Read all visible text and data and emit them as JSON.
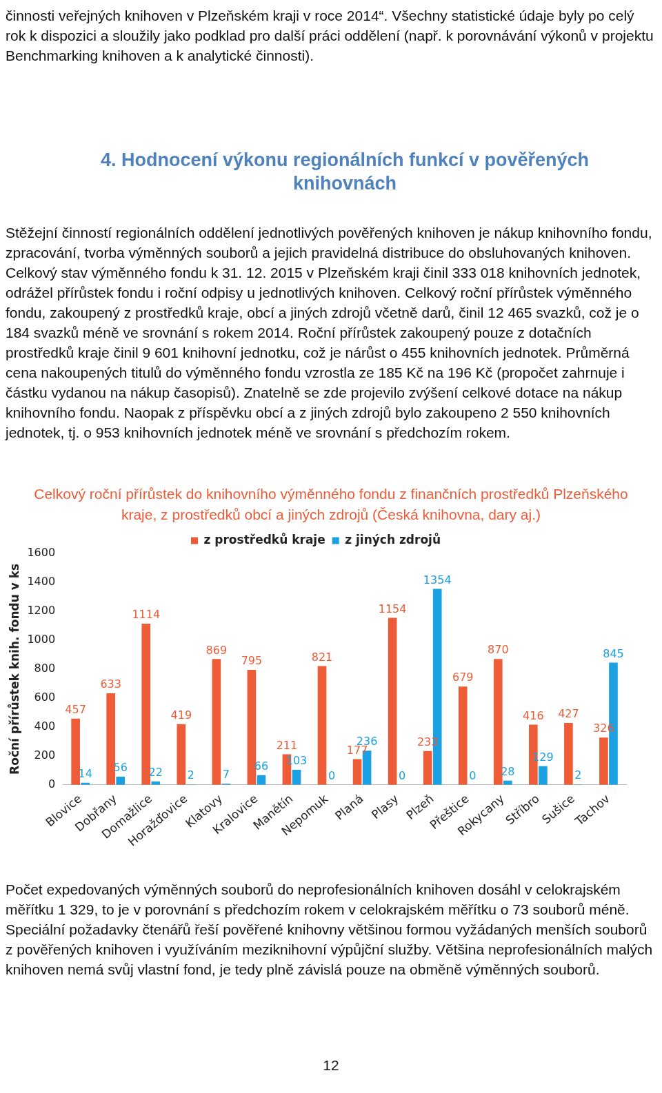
{
  "chart_data": {
    "type": "bar",
    "title": "Celkový roční přírůstek do knihovního výměnného fondu z finančních prostředků Plzeňského kraje, z prostředků obcí a jiných zdrojů (Česká knihovna, dary aj.)",
    "ylabel": "Roční přírůstek knih. fondu v ks",
    "categories": [
      "Blovice",
      "Dobřany",
      "Domažlice",
      "Horažďovice",
      "Klatovy",
      "Kralovice",
      "Manětín",
      "Nepomuk",
      "Planá",
      "Plasy",
      "Plzeň",
      "Přeštice",
      "Rokycany",
      "Stříbro",
      "Sušice",
      "Tachov"
    ],
    "series": [
      {
        "name": "z prostředků kraje",
        "color": "#ed5b37",
        "values": [
          457,
          633,
          1114,
          419,
          869,
          795,
          211,
          821,
          177,
          1154,
          233,
          679,
          870,
          416,
          427,
          326
        ]
      },
      {
        "name": "z jiných zdrojů",
        "color": "#1ba1e2",
        "values": [
          14,
          56,
          22,
          2,
          7,
          66,
          103,
          0,
          236,
          0,
          1354,
          0,
          28,
          129,
          2,
          845
        ]
      }
    ],
    "ylim": [
      0,
      1600
    ],
    "yticks": [
      0,
      200,
      400,
      600,
      800,
      1000,
      1200,
      1400,
      1600
    ],
    "grid": false,
    "legend": "top",
    "data_labels": true,
    "annotations": [
      "činnosti veřejných knihoven v Plzeňském kraji v roce 2014“. Všechny statistické údaje byly po celý rok k dispozici a sloužily jako podklad pro další práci oddělení (např. k porovnávání výkonů v projektu Benchmarking knihoven a k analytické činnosti).",
      "4. Hodnocení výkonu regionálních funkcí v pověřených knihovnách",
      "Stěžejní činností regionálních oddělení jednotlivých pověřených knihoven je nákup knihovního fondu, zpracování, tvorba výměnných souborů a jejich pravidelná distribuce do obsluhovaných knihoven. Celkový stav výměnného fondu k 31. 12. 2015 v Plzeňském kraji činil 333 018 knihovních jednotek, odrážel přírůstek fondu i roční odpisy u jednotlivých knihoven. Celkový roční přírůstek výměnného fondu, zakoupený z prostředků kraje, obcí a jiných zdrojů včetně darů, činil 12 465 svazků, což je o 184 svazků méně ve srovnání s rokem 2014. Roční přírůstek zakoupený pouze z dotačních prostředků kraje činil 9 601 knihovní jednotku, což je nárůst o 455 knihovních jednotek. Průměrná cena nakoupených titulů do výměnného fondu vzrostla ze 185 Kč na 196 Kč (propočet zahrnuje i částku vydanou na nákup časopisů). Znatelně se zde projevilo zvýšení celkové dotace na nákup knihovního fondu. Naopak z příspěvku obcí a z jiných zdrojů bylo zakoupeno 2 550 knihovních jednotek, tj. o 953 knihovních jednotek méně ve srovnání s předchozím rokem.",
      "Počet expedovaných výměnných souborů do neprofesionálních knihoven dosáhl v celokrajském měřítku 1 329, to je v porovnání s předchozím rokem v celokrajském měřítku o 73 souborů méně. Speciální požadavky čtenářů řeší pověřené knihovny většinou formou vyžádaných menších souborů z pověřených knihoven i využíváním meziknihovní výpůjční služby. Většina neprofesionálních malých knihoven nemá svůj vlastní fond, je tedy plně závislá pouze na obměně výměnných souborů.",
      "12"
    ]
  }
}
